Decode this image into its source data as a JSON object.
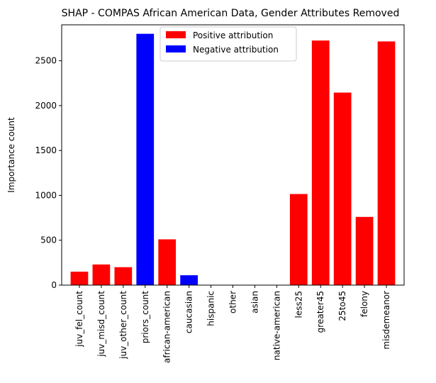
{
  "chart_data": {
    "type": "bar",
    "title": "SHAP - COMPAS African American Data, Gender Attributes Removed",
    "xlabel": "",
    "ylabel": "Importance count",
    "ylim": [
      0,
      2900
    ],
    "yticks": [
      0,
      500,
      1000,
      1500,
      2000,
      2500
    ],
    "grid": false,
    "legend_position": "top-center",
    "legend": [
      {
        "label": "Positive attribution",
        "color": "#ff0000"
      },
      {
        "label": "Negative attribution",
        "color": "#0000ff"
      }
    ],
    "categories": [
      "juv_fel_count",
      "juv_misd_count",
      "juv_other_count",
      "priors_count",
      "african-american",
      "caucasian",
      "hispanic",
      "other",
      "asian",
      "native-american",
      "less25",
      "greater45",
      "25to45",
      "felony",
      "misdemeanor"
    ],
    "values": [
      150,
      230,
      200,
      2800,
      510,
      110,
      0,
      0,
      0,
      0,
      1015,
      2725,
      2145,
      760,
      2715
    ],
    "attribution": [
      "positive",
      "positive",
      "positive",
      "negative",
      "positive",
      "negative",
      "positive",
      "positive",
      "positive",
      "positive",
      "positive",
      "positive",
      "positive",
      "positive",
      "positive"
    ],
    "colors": {
      "positive": "#ff0000",
      "negative": "#0000ff"
    }
  }
}
